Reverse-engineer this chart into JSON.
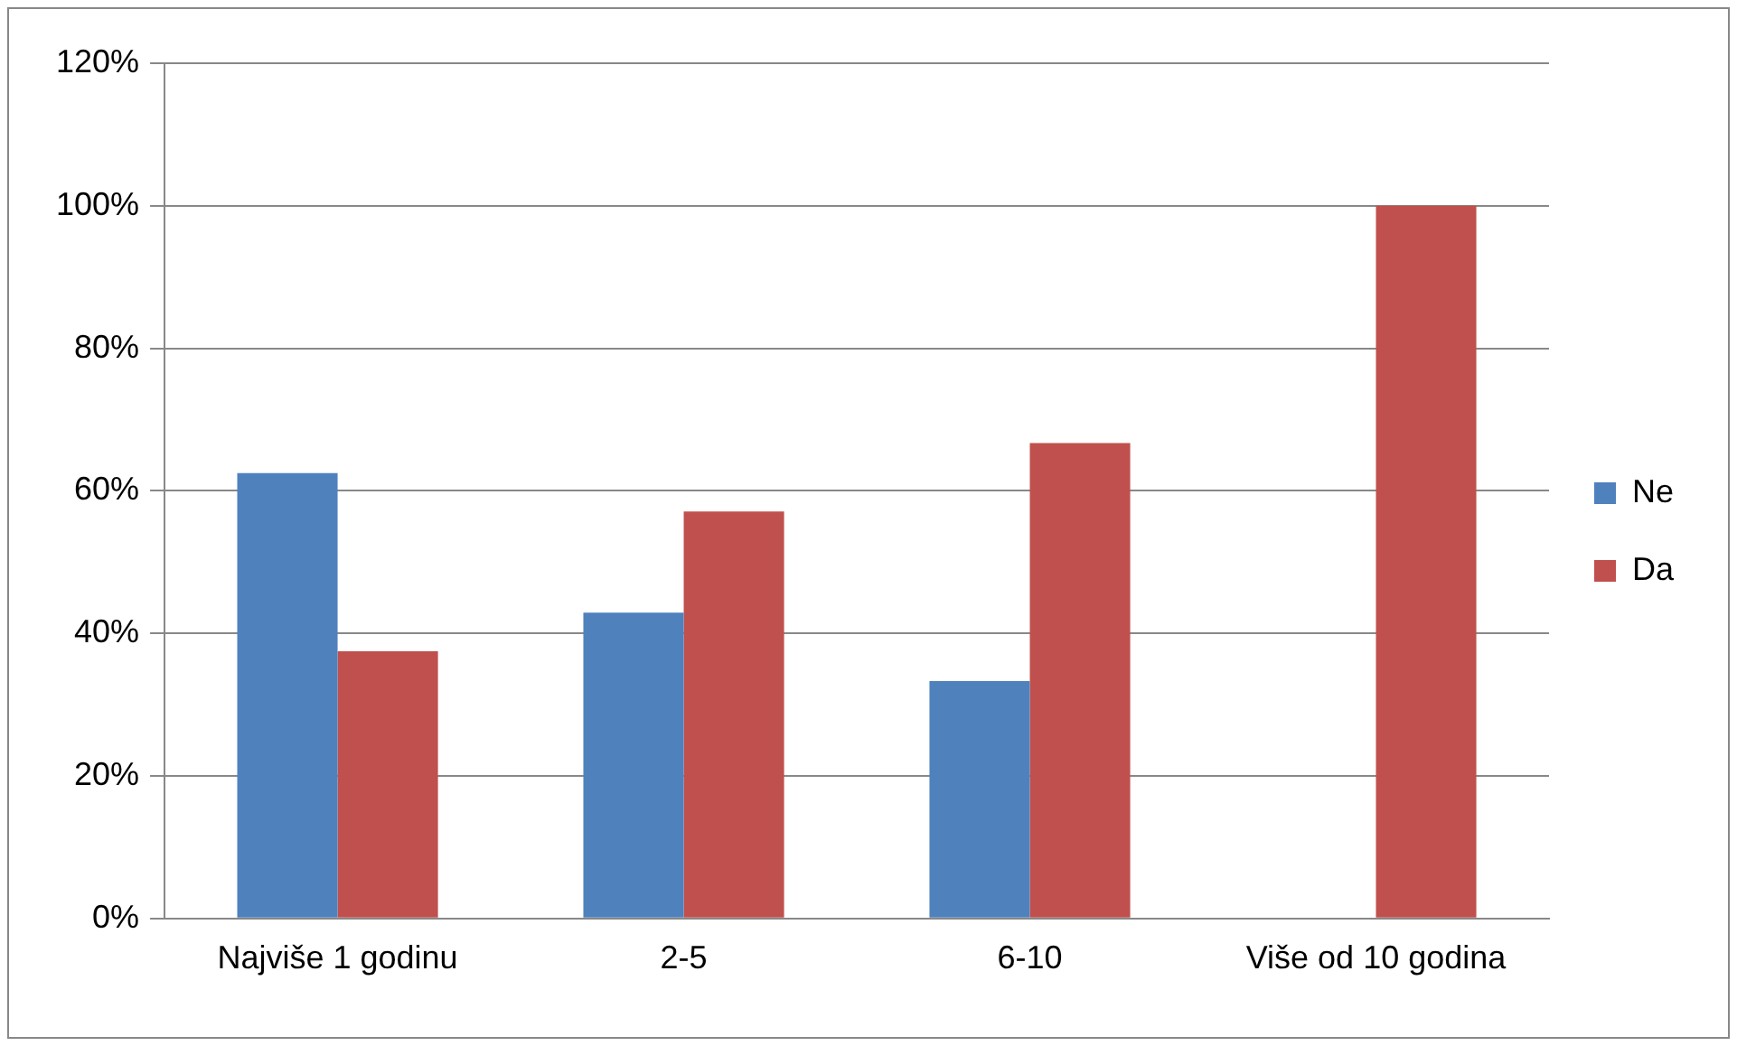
{
  "chart_data": {
    "type": "bar",
    "categories": [
      "Najviše 1 godinu",
      "2-5",
      "6-10",
      "Više od 10 godina"
    ],
    "series": [
      {
        "name": "Ne",
        "color": "#4f81bd",
        "values": [
          62.5,
          42.9,
          33.3,
          0
        ]
      },
      {
        "name": "Da",
        "color": "#c0504d",
        "values": [
          37.5,
          57.1,
          66.7,
          100
        ]
      }
    ],
    "ylim": [
      0,
      120
    ],
    "yticks": [
      {
        "value": 0,
        "label": "0%"
      },
      {
        "value": 20,
        "label": "20%"
      },
      {
        "value": 40,
        "label": "40%"
      },
      {
        "value": 60,
        "label": "60%"
      },
      {
        "value": 80,
        "label": "80%"
      },
      {
        "value": 100,
        "label": "100%"
      },
      {
        "value": 120,
        "label": "120%"
      }
    ],
    "grid": "y",
    "legend": "right"
  }
}
